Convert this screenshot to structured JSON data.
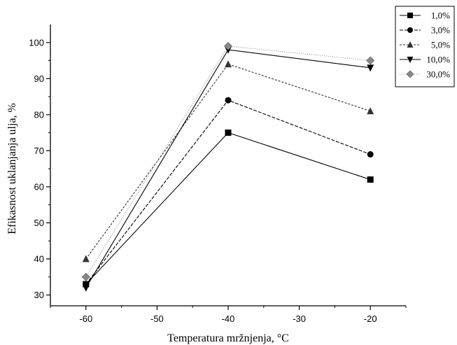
{
  "chart_data": {
    "type": "line",
    "title": "",
    "xlabel": "Temperatura mržnjenja, °C",
    "ylabel": "Efikasnost uklanjanja ulja, %",
    "x": [
      -60,
      -40,
      -20
    ],
    "xlim": [
      -65,
      -15
    ],
    "ylim": [
      27,
      105
    ],
    "xticks": [
      -60,
      -50,
      -40,
      -30,
      -20
    ],
    "yticks": [
      30,
      40,
      50,
      60,
      70,
      80,
      90,
      100
    ],
    "grid": false,
    "legend_position": "top-right",
    "series": [
      {
        "name": "1,0%",
        "values": [
          33,
          75,
          62
        ],
        "marker": "square",
        "color": "#000000",
        "dash": ""
      },
      {
        "name": "3,0%",
        "values": [
          33,
          84,
          69
        ],
        "marker": "circle",
        "color": "#000000",
        "dash": "5,2"
      },
      {
        "name": "5,0%",
        "values": [
          40,
          94,
          81
        ],
        "marker": "triangle-up",
        "color": "#333333",
        "dash": "3,2"
      },
      {
        "name": "10,0%",
        "values": [
          32,
          98,
          93
        ],
        "marker": "triangle-down",
        "color": "#000000",
        "dash": ""
      },
      {
        "name": "30,0%",
        "values": [
          35,
          99,
          95
        ],
        "marker": "diamond",
        "color": "#888888",
        "dash": "1,2"
      }
    ]
  }
}
